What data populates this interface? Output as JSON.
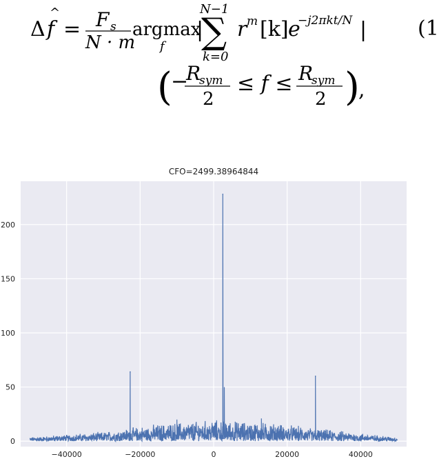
{
  "equation": {
    "number": "(1",
    "lhs": "Δ",
    "lhs_var": "f",
    "hat": "^",
    "equals": "=",
    "frac_num": "F",
    "frac_num_sub": "s",
    "frac_den": "N · m",
    "argmax": "argmax",
    "argmax_sub": "f",
    "bar_left": "|",
    "sum_top": "N−1",
    "sum_symbol": "∑",
    "sum_bottom": "k=0",
    "term_r": "r",
    "term_r_sup": "m",
    "term_k": "[k]",
    "term_e": "e",
    "term_e_sup": "−j2πkt/N",
    "bar_right": "|",
    "open_paren": "(",
    "minus": "−",
    "r_sym_1": "R",
    "r_sym_1_sub": "sym",
    "den_2a": "2",
    "leq1": "≤ f ≤",
    "r_sym_2": "R",
    "r_sym_2_sub": "sym",
    "den_2b": "2",
    "close_paren": ")",
    "comma": ","
  },
  "chart_data": {
    "type": "line",
    "title": "CFO=2499.38964844",
    "xlim": [
      -52500,
      52500
    ],
    "ylim": [
      -5,
      240
    ],
    "xticks": [
      -40000,
      -20000,
      0,
      20000,
      40000
    ],
    "xtick_labels": [
      "−40000",
      "−20000",
      "0",
      "20000",
      "40000"
    ],
    "yticks": [
      0,
      50,
      100,
      150,
      200
    ],
    "ytick_labels": [
      "0",
      "50",
      "100",
      "150",
      "200"
    ],
    "grid": true,
    "line_color": "#4c72b0",
    "background": "#eaeaf2",
    "x_range": [
      -50000,
      50000
    ],
    "peaks": [
      {
        "x": -22700,
        "y": 64
      },
      {
        "x": 2500,
        "y": 228
      },
      {
        "x": 27700,
        "y": 60
      }
    ],
    "secondary_peaks": [
      {
        "x": -10000,
        "y": 20
      },
      {
        "x": 13000,
        "y": 21
      },
      {
        "x": 2900,
        "y": 50
      }
    ],
    "noise_floor_envelope": [
      {
        "x": -50000,
        "y": 3
      },
      {
        "x": -30000,
        "y": 7
      },
      {
        "x": -15000,
        "y": 13
      },
      {
        "x": 0,
        "y": 16
      },
      {
        "x": 15000,
        "y": 14
      },
      {
        "x": 30000,
        "y": 9
      },
      {
        "x": 50000,
        "y": 3
      }
    ]
  }
}
